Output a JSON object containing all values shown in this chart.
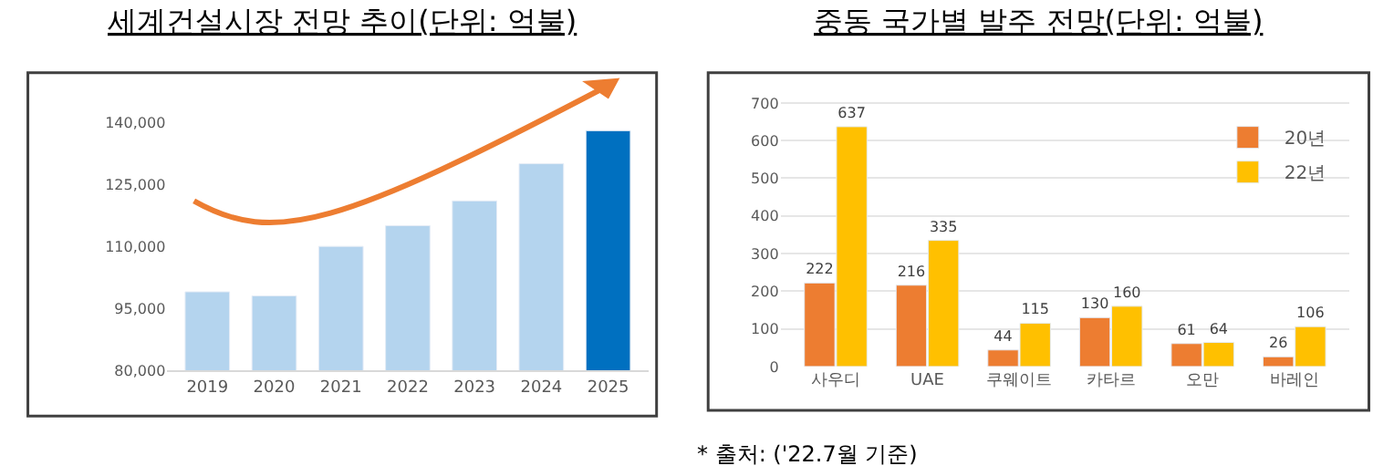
{
  "chart_data": [
    {
      "type": "bar",
      "title": "세계건설시장 전망 추이(단위: 억불)",
      "categories": [
        "2019",
        "2020",
        "2021",
        "2022",
        "2023",
        "2024",
        "2025"
      ],
      "values": [
        99000,
        98000,
        110000,
        115000,
        121000,
        130000,
        138000
      ],
      "colors": [
        "#b4d4ee",
        "#b4d4ee",
        "#b4d4ee",
        "#b4d4ee",
        "#b4d4ee",
        "#b4d4ee",
        "#0070c0"
      ],
      "ylim": [
        80000,
        152000
      ],
      "yticks": [
        {
          "value": 80000,
          "label": "80,000"
        },
        {
          "value": 95000,
          "label": "95,000"
        },
        {
          "value": 110000,
          "label": "110,000"
        },
        {
          "value": 125000,
          "label": "125,000"
        },
        {
          "value": 140000,
          "label": "140,000"
        }
      ],
      "grid": false,
      "legend": false
    },
    {
      "type": "bar",
      "title": "중동 국가별 발주 전망(단위: 억불)",
      "categories": [
        "사우디",
        "UAE",
        "쿠웨이트",
        "카타르",
        "오만",
        "바레인"
      ],
      "series": [
        {
          "name": "20년",
          "color": "#ed7d31",
          "values": [
            222,
            216,
            44,
            130,
            61,
            26
          ]
        },
        {
          "name": "22년",
          "color": "#ffc000",
          "values": [
            637,
            335,
            115,
            160,
            64,
            106
          ]
        }
      ],
      "ylim": [
        0,
        780
      ],
      "yticks": [
        0,
        100,
        200,
        300,
        400,
        500,
        600,
        700
      ],
      "grid": "y",
      "legend": "top right",
      "data_labels": true,
      "annotations": [
        "* 출처: ('22.7월 기준)"
      ]
    }
  ]
}
